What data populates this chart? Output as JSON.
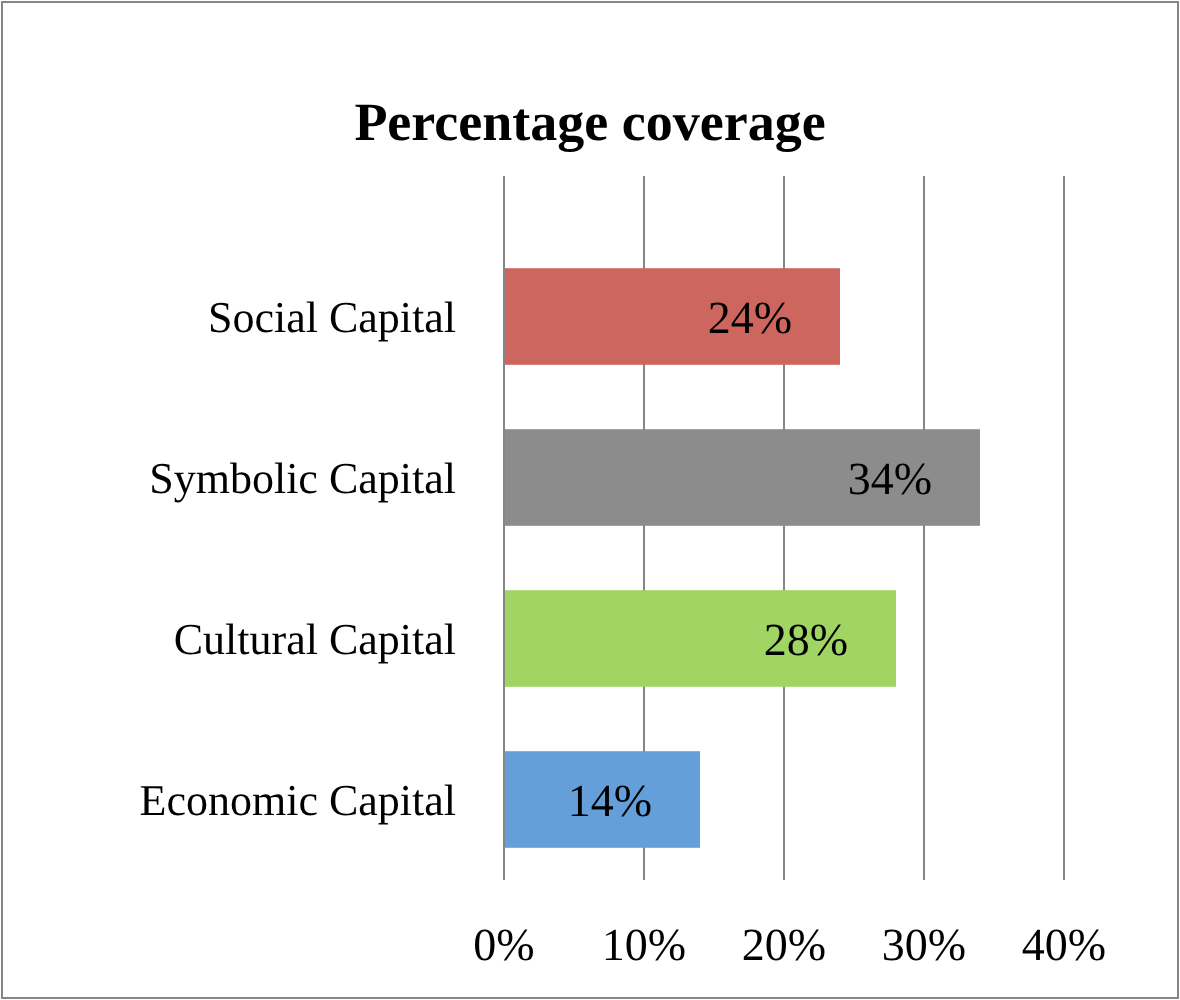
{
  "chart_data": {
    "type": "bar",
    "orientation": "horizontal",
    "title": "Percentage coverage",
    "categories": [
      "Social Capital",
      "Symbolic Capital",
      "Cultural Capital",
      "Economic Capital"
    ],
    "values": [
      24,
      34,
      28,
      14
    ],
    "colors": [
      "#cd665e",
      "#8c8c8c",
      "#a0d463",
      "#659fd9"
    ],
    "xlim": [
      0,
      40
    ],
    "xticks": [
      {
        "value": 0,
        "label": "0%"
      },
      {
        "value": 10,
        "label": "10%"
      },
      {
        "value": 20,
        "label": "20%"
      },
      {
        "value": 30,
        "label": "30%"
      },
      {
        "value": 40,
        "label": "40%"
      }
    ],
    "value_labels": [
      "24%",
      "34%",
      "28%",
      "14%"
    ],
    "grid": "x"
  }
}
